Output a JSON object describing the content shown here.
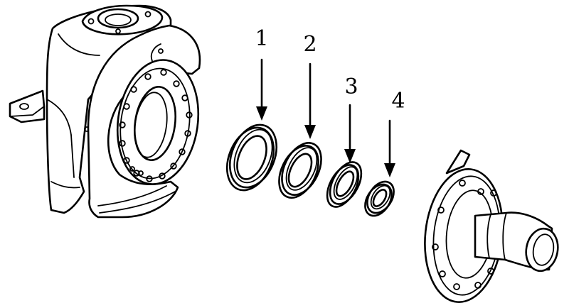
{
  "callouts": [
    {
      "label": "1"
    },
    {
      "label": "2"
    },
    {
      "label": "3"
    },
    {
      "label": "4"
    }
  ],
  "colors": {
    "ink": "#000000",
    "paper": "#ffffff"
  }
}
